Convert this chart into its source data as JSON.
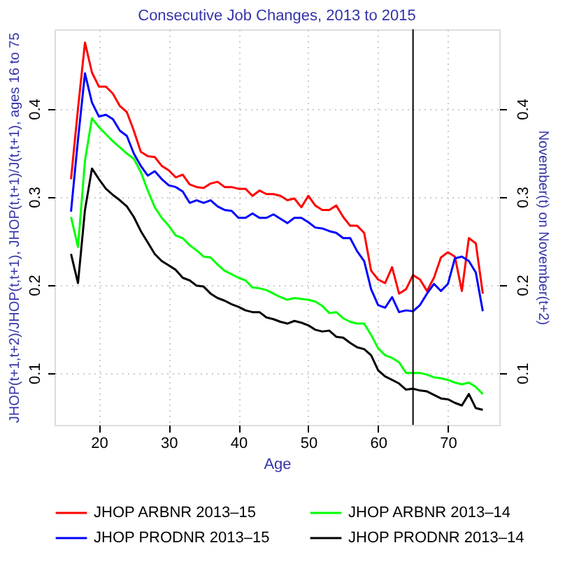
{
  "chart_data": {
    "type": "line",
    "title": "Consecutive Job Changes, 2013 to 2015",
    "xlabel": "Age",
    "ylabel": "JHOP(t+1,t+2)/JHOP(t,t+1), JHOP(t,t+1)/J(t,t+1), ages 16 to 75",
    "y2label": "November(t) on November(t+2)",
    "x": [
      16,
      17,
      18,
      19,
      20,
      21,
      22,
      23,
      24,
      25,
      26,
      27,
      28,
      29,
      30,
      31,
      32,
      33,
      34,
      35,
      36,
      37,
      38,
      39,
      40,
      41,
      42,
      43,
      44,
      45,
      46,
      47,
      48,
      49,
      50,
      51,
      52,
      53,
      54,
      55,
      56,
      57,
      58,
      59,
      60,
      61,
      62,
      63,
      64,
      65,
      66,
      67,
      68,
      69,
      70,
      71,
      72,
      73,
      74,
      75
    ],
    "series": [
      {
        "name": "JHOP ARBNR 2013–15",
        "color": "#ff0000",
        "values": [
          0.32,
          0.4,
          0.475,
          0.441,
          0.425,
          0.425,
          0.417,
          0.403,
          0.396,
          0.375,
          0.351,
          0.346,
          0.345,
          0.335,
          0.33,
          0.322,
          0.325,
          0.314,
          0.311,
          0.31,
          0.315,
          0.317,
          0.311,
          0.311,
          0.309,
          0.309,
          0.301,
          0.307,
          0.303,
          0.303,
          0.301,
          0.296,
          0.298,
          0.288,
          0.301,
          0.29,
          0.285,
          0.285,
          0.29,
          0.277,
          0.267,
          0.267,
          0.259,
          0.216,
          0.206,
          0.202,
          0.22,
          0.19,
          0.195,
          0.211,
          0.206,
          0.193,
          0.208,
          0.231,
          0.237,
          0.232,
          0.193,
          0.253,
          0.247,
          0.19
        ]
      },
      {
        "name": "JHOP PRODNR 2013–15",
        "color": "#0000ff",
        "values": [
          0.283,
          0.365,
          0.44,
          0.407,
          0.391,
          0.393,
          0.388,
          0.375,
          0.369,
          0.349,
          0.335,
          0.324,
          0.329,
          0.32,
          0.313,
          0.311,
          0.306,
          0.293,
          0.296,
          0.293,
          0.296,
          0.289,
          0.285,
          0.284,
          0.276,
          0.276,
          0.281,
          0.276,
          0.276,
          0.28,
          0.275,
          0.27,
          0.276,
          0.276,
          0.271,
          0.265,
          0.264,
          0.261,
          0.259,
          0.253,
          0.253,
          0.238,
          0.227,
          0.195,
          0.177,
          0.174,
          0.186,
          0.169,
          0.171,
          0.17,
          0.177,
          0.19,
          0.201,
          0.193,
          0.201,
          0.23,
          0.232,
          0.227,
          0.214,
          0.17
        ]
      },
      {
        "name": "JHOP ARBNR 2013–14",
        "color": "#00ff00",
        "values": [
          0.277,
          0.243,
          0.341,
          0.389,
          0.379,
          0.371,
          0.363,
          0.356,
          0.349,
          0.343,
          0.328,
          0.307,
          0.288,
          0.276,
          0.267,
          0.256,
          0.253,
          0.245,
          0.239,
          0.232,
          0.231,
          0.223,
          0.216,
          0.212,
          0.208,
          0.205,
          0.197,
          0.196,
          0.194,
          0.19,
          0.186,
          0.183,
          0.185,
          0.184,
          0.183,
          0.181,
          0.176,
          0.168,
          0.169,
          0.162,
          0.158,
          0.156,
          0.156,
          0.143,
          0.128,
          0.12,
          0.117,
          0.112,
          0.1,
          0.1,
          0.1,
          0.098,
          0.095,
          0.094,
          0.092,
          0.089,
          0.087,
          0.089,
          0.084,
          0.076
        ]
      },
      {
        "name": "JHOP PRODNR 2013–14",
        "color": "#000000",
        "values": [
          0.235,
          0.202,
          0.285,
          0.332,
          0.32,
          0.309,
          0.302,
          0.296,
          0.289,
          0.277,
          0.261,
          0.248,
          0.235,
          0.227,
          0.222,
          0.217,
          0.208,
          0.205,
          0.199,
          0.198,
          0.19,
          0.185,
          0.182,
          0.178,
          0.175,
          0.171,
          0.169,
          0.169,
          0.163,
          0.161,
          0.158,
          0.156,
          0.159,
          0.157,
          0.154,
          0.149,
          0.147,
          0.148,
          0.141,
          0.14,
          0.134,
          0.129,
          0.127,
          0.12,
          0.103,
          0.096,
          0.092,
          0.088,
          0.081,
          0.082,
          0.08,
          0.079,
          0.075,
          0.071,
          0.07,
          0.066,
          0.063,
          0.076,
          0.06,
          0.058
        ]
      }
    ],
    "xlim": [
      13.64,
      77.36
    ],
    "xticks": [
      20,
      30,
      40,
      50,
      60,
      70
    ],
    "ylim": [
      0.041,
      0.49
    ],
    "yticks": [
      0.1,
      0.2,
      0.3,
      0.4
    ],
    "y2lim": [
      0.041,
      0.49
    ],
    "y2ticks": [
      0.1,
      0.2,
      0.3,
      0.4
    ],
    "ref_lines": [
      {
        "axis": "x",
        "value": 65,
        "color": "#000000"
      }
    ],
    "grid": true,
    "legend": "bottom",
    "marker": "none",
    "line_style": "solid"
  }
}
